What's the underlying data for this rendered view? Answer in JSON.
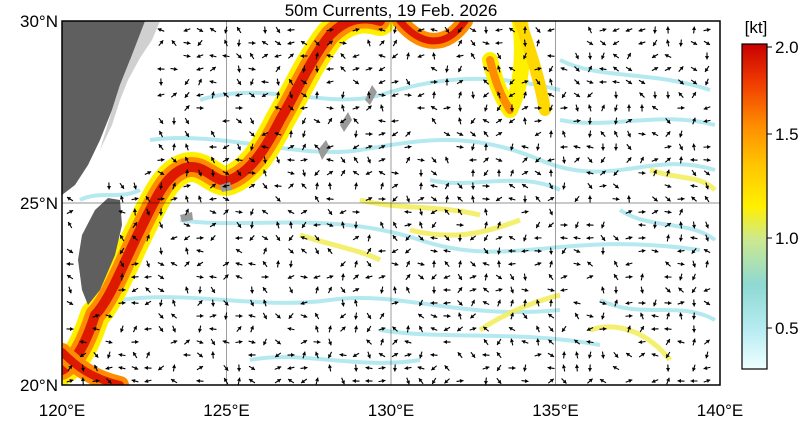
{
  "map": {
    "title": "50m Currents, 19 Feb. 2026",
    "lat_labels": [
      "30°N",
      "25°N",
      "20°N"
    ],
    "lon_labels": [
      "120°E",
      "125°E",
      "130°E",
      "135°E",
      "140°E"
    ],
    "lat_range": [
      20,
      30
    ],
    "lon_range": [
      120,
      140
    ],
    "colors": {
      "land": "#5f5f5f",
      "land_light": "#d0d0d0",
      "ocean": "#ffffff",
      "arrow": "#000000"
    }
  },
  "colorbar": {
    "unit": "[kt]",
    "ticks": [
      "2.0",
      "1.5",
      "1.0",
      "0.5"
    ],
    "range": [
      0.25,
      2.0
    ],
    "stops": [
      "#f0ffff",
      "#b7ecf2",
      "#8ed9d2",
      "#cde98e",
      "#fff000",
      "#ffc800",
      "#ff8c00",
      "#f03c00",
      "#c80000"
    ]
  }
}
